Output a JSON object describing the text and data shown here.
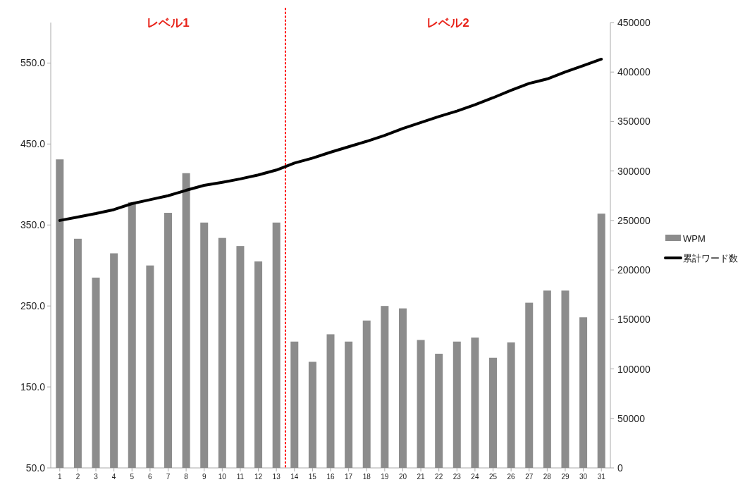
{
  "chart_data": {
    "type": "bar",
    "x": [
      1,
      2,
      3,
      4,
      5,
      6,
      7,
      8,
      9,
      10,
      11,
      12,
      13,
      14,
      15,
      16,
      17,
      18,
      19,
      20,
      21,
      22,
      23,
      24,
      25,
      26,
      27,
      28,
      29,
      30,
      31
    ],
    "xlim": [
      0.5,
      31.5
    ],
    "xticks": [
      1,
      2,
      3,
      4,
      5,
      6,
      7,
      8,
      9,
      10,
      11,
      12,
      13,
      14,
      15,
      16,
      17,
      18,
      19,
      20,
      21,
      22,
      23,
      24,
      25,
      26,
      27,
      28,
      29,
      30,
      31
    ],
    "ylim": [
      50,
      600
    ],
    "yticks": [
      {
        "value": 50,
        "label": "50.0"
      },
      {
        "value": 150,
        "label": "150.0"
      },
      {
        "value": 250,
        "label": "250.0"
      },
      {
        "value": 350,
        "label": "350.0"
      },
      {
        "value": 450,
        "label": "450.0"
      },
      {
        "value": 550,
        "label": "550.0"
      }
    ],
    "y2lim": [
      0,
      450000
    ],
    "y2ticks": [
      0,
      50000,
      100000,
      150000,
      200000,
      250000,
      300000,
      350000,
      400000,
      450000
    ],
    "series": [
      {
        "name": "WPM",
        "color": "#8c8c8c",
        "values": [
          431,
          333,
          285,
          315,
          378,
          300,
          365,
          414,
          353,
          334,
          324,
          305,
          353,
          206,
          181,
          215,
          206,
          232,
          250,
          247,
          208,
          191,
          206,
          211,
          186,
          205,
          254,
          269,
          269,
          236,
          364
        ]
      },
      {
        "name": "累計ワード数",
        "type": "line",
        "axis": "y2",
        "color": "#000000",
        "values": [
          250000,
          253500,
          257000,
          261000,
          267000,
          271000,
          275000,
          280500,
          285500,
          288500,
          292000,
          296000,
          301000,
          308000,
          313000,
          319000,
          324500,
          330000,
          336000,
          343000,
          349000,
          355000,
          360500,
          367000,
          374000,
          381500,
          388500,
          393000,
          400000,
          406500,
          413000
        ]
      }
    ],
    "ref_lines": [
      {
        "axis": "x",
        "value": 13.5,
        "color": "#ff0000",
        "line_style": "dotted"
      }
    ],
    "annotations": [
      "レベル1",
      "レベル2"
    ],
    "legend": "right",
    "grid": false
  }
}
